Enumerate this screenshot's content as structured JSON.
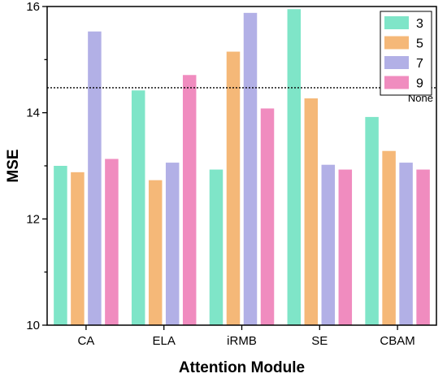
{
  "chart_data": {
    "type": "bar",
    "xlabel": "Attention Module",
    "ylabel": "MSE",
    "ylim": [
      10,
      16
    ],
    "yticks": [
      10,
      12,
      14,
      16
    ],
    "categories": [
      "CA",
      "ELA",
      "iRMB",
      "SE",
      "CBAM"
    ],
    "series": [
      {
        "name": "3",
        "color": "#7fe5c8",
        "values": [
          13.0,
          14.42,
          12.93,
          15.95,
          13.92
        ]
      },
      {
        "name": "5",
        "color": "#f5b878",
        "values": [
          12.88,
          12.73,
          15.15,
          14.27,
          13.28
        ]
      },
      {
        "name": "7",
        "color": "#b2b0e6",
        "values": [
          15.53,
          13.06,
          15.88,
          13.02,
          13.06
        ]
      },
      {
        "name": "9",
        "color": "#f08cbf",
        "values": [
          13.13,
          14.71,
          14.08,
          12.93,
          12.93
        ]
      }
    ],
    "reference_line": {
      "label": "None",
      "value": 14.47
    },
    "legend": "top-right"
  }
}
